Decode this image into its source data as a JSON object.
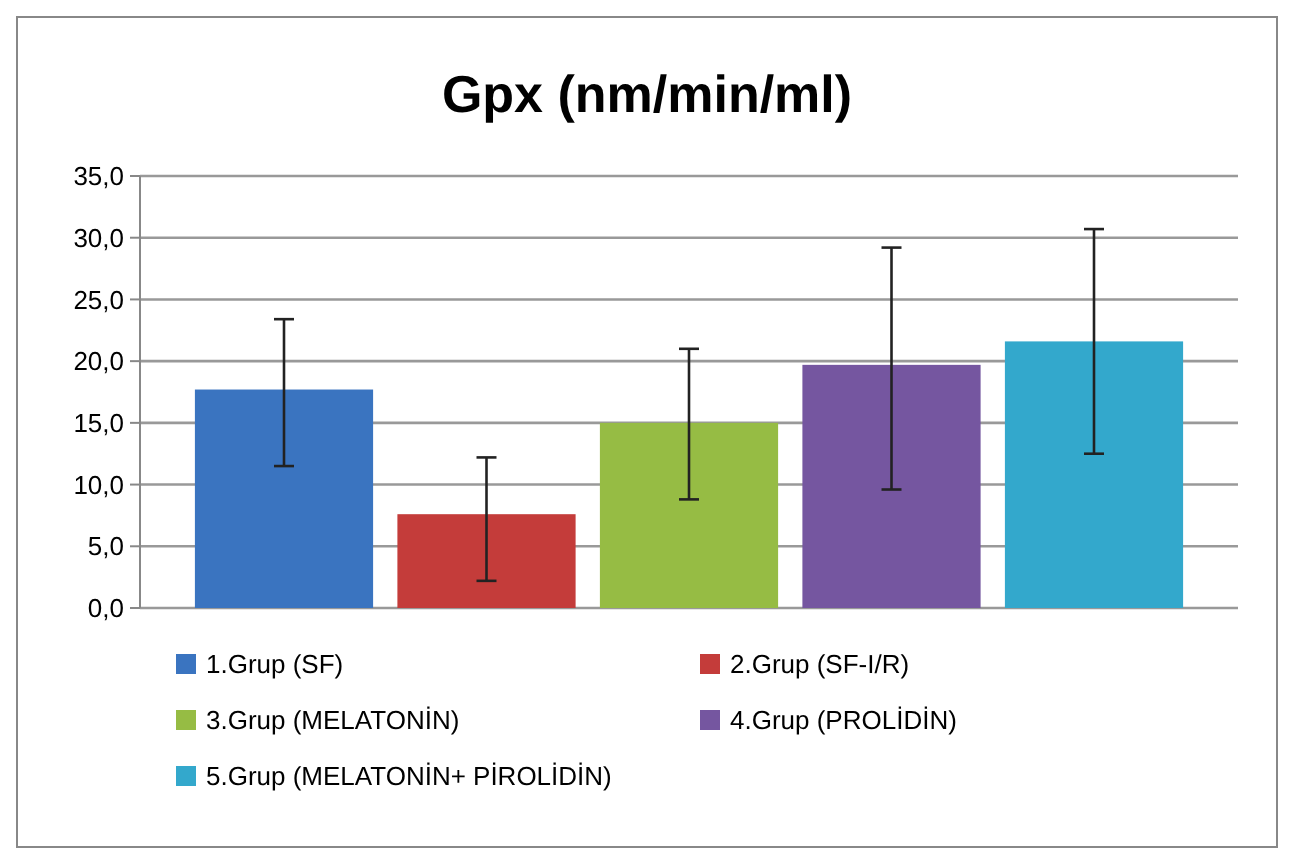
{
  "chart_data": {
    "type": "bar",
    "title": "Gpx (nm/min/ml)",
    "categories": [
      null
    ],
    "series": [
      {
        "name": "1.Grup (SF)",
        "color": "#3a74c0",
        "values": [
          17.7
        ],
        "errors": [
          [
            11.5,
            23.4
          ]
        ]
      },
      {
        "name": "2.Grup (SF-I/R)",
        "color": "#c43c3a",
        "values": [
          7.6
        ],
        "errors": [
          [
            2.2,
            12.2
          ]
        ]
      },
      {
        "name": "3.Grup (MELATONİN)",
        "color": "#96bc44",
        "values": [
          15.0
        ],
        "errors": [
          [
            8.8,
            21.0
          ]
        ]
      },
      {
        "name": "4.Grup (PROLİDİN)",
        "color": "#7556a0",
        "values": [
          19.7
        ],
        "errors": [
          [
            9.6,
            29.2
          ]
        ]
      },
      {
        "name": "5.Grup (MELATONİN+ PİROLİDİN)",
        "color": "#33a8cc",
        "values": [
          21.6
        ],
        "errors": [
          [
            12.5,
            30.7
          ]
        ]
      }
    ],
    "ylim": [
      0,
      35
    ],
    "yticks": [
      {
        "value": 0,
        "label": "0,0"
      },
      {
        "value": 5,
        "label": "5,0"
      },
      {
        "value": 10,
        "label": "10,0"
      },
      {
        "value": 15,
        "label": "15,0"
      },
      {
        "value": 20,
        "label": "20,0"
      },
      {
        "value": 25,
        "label": "25,0"
      },
      {
        "value": 30,
        "label": "30,0"
      },
      {
        "value": 35,
        "label": "35,0"
      }
    ],
    "grid": "y",
    "legend": "bottom"
  }
}
